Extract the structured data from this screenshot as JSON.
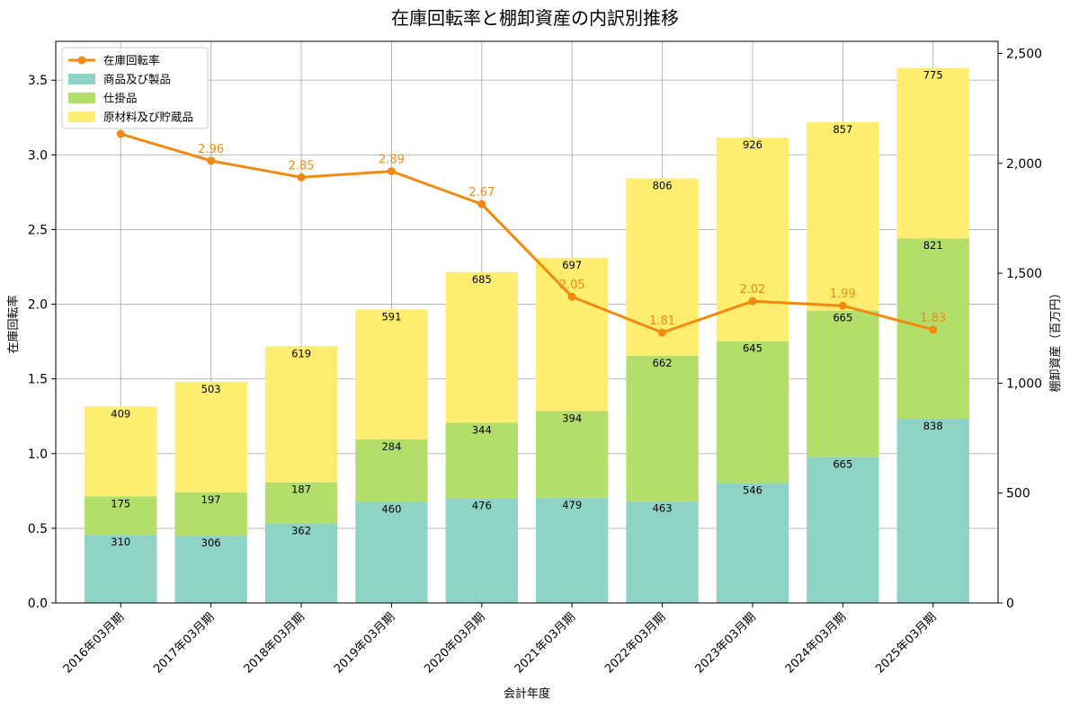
{
  "chart_data": {
    "type": "bar",
    "title": "在庫回転率と棚卸資産の内訳別推移",
    "xlabel": "会計年度",
    "ylabel_left": "在庫回転率",
    "ylabel_right": "棚卸資産（百万円）",
    "categories": [
      "2016年03月期",
      "2017年03月期",
      "2018年03月期",
      "2019年03月期",
      "2020年03月期",
      "2021年03月期",
      "2022年03月期",
      "2023年03月期",
      "2024年03月期",
      "2025年03月期"
    ],
    "series": [
      {
        "name": "商品及び製品",
        "kind": "stacked-bar",
        "axis": "right",
        "color": "#8fd3c7",
        "values": [
          310,
          306,
          362,
          460,
          476,
          479,
          463,
          546,
          665,
          838
        ]
      },
      {
        "name": "仕掛品",
        "kind": "stacked-bar",
        "axis": "right",
        "color": "#b3de69",
        "values": [
          175,
          197,
          187,
          284,
          344,
          394,
          662,
          645,
          665,
          821
        ]
      },
      {
        "name": "原材料及び貯蔵品",
        "kind": "stacked-bar",
        "axis": "right",
        "color": "#ffed6f",
        "values": [
          409,
          503,
          619,
          591,
          685,
          697,
          806,
          926,
          857,
          775
        ]
      },
      {
        "name": "在庫回転率",
        "kind": "line",
        "axis": "left",
        "color": "#f28a10",
        "values": [
          3.14,
          2.96,
          2.85,
          2.89,
          2.67,
          2.05,
          1.81,
          2.02,
          1.99,
          1.83
        ],
        "labels": [
          "",
          "2.96",
          "2.85",
          "2.89",
          "2.67",
          "2.05",
          "1.81",
          "2.02",
          "1.99",
          "1.83"
        ]
      }
    ],
    "ylim_left": [
      0,
      3.76
    ],
    "yticks_left": [
      "0.0",
      "0.5",
      "1.0",
      "1.5",
      "2.0",
      "2.5",
      "3.0",
      "3.5"
    ],
    "ylim_right": [
      0,
      2555
    ],
    "yticks_right": [
      "0",
      "500",
      "1,000",
      "1,500",
      "2,000",
      "2,500"
    ],
    "grid": true,
    "legend_position": "top-left"
  }
}
